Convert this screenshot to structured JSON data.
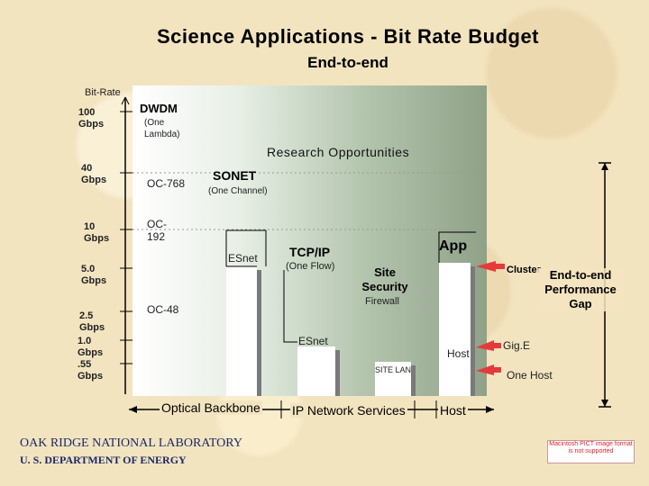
{
  "title": "Science Applications - Bit Rate Budget",
  "subtitle": "End-to-end",
  "y_axis": {
    "label": "Bit-Rate",
    "ticks": [
      "100 Gbps",
      "40 Gbps",
      "10 Gbps",
      "5.0 Gbps",
      "2.5 Gbps",
      "1.0 Gbps",
      ".55 Gbps"
    ]
  },
  "region_labels": {
    "dwdm": "DWDM",
    "dwdm_sub": "(One Lambda)",
    "research": "Research Opportunities",
    "sonet": "SONET",
    "sonet_sub": "(One Channel)",
    "oc768": "OC-768",
    "oc192": "OC-192",
    "oc48": "OC-48",
    "esnet_top": "ESnet",
    "esnet_low": "ESnet",
    "tcpip": "TCP/IP",
    "tcpip_sub": "(One Flow)",
    "site_security": "Site Security",
    "firewall": "Firewall",
    "site_lan": "SITE LAN",
    "app": "App",
    "host": "Host",
    "cluster": "Cluster",
    "gige": "Gig.E",
    "one_host": "One Host",
    "gap": "End-to-end Performance Gap"
  },
  "x_axis": {
    "segments": [
      "Optical Backbone",
      "IP Network Services",
      "Host"
    ]
  },
  "footer": {
    "line1": "OAK RIDGE NATIONAL LABORATORY",
    "line2": "U. S. DEPARTMENT OF ENERGY"
  },
  "stamp_text": "Macintosh PICT image format is not supported",
  "colors": {
    "arrow_red": "#e53a3a",
    "bar_white": "#ffffff",
    "shadow": "#7a7a7a"
  }
}
